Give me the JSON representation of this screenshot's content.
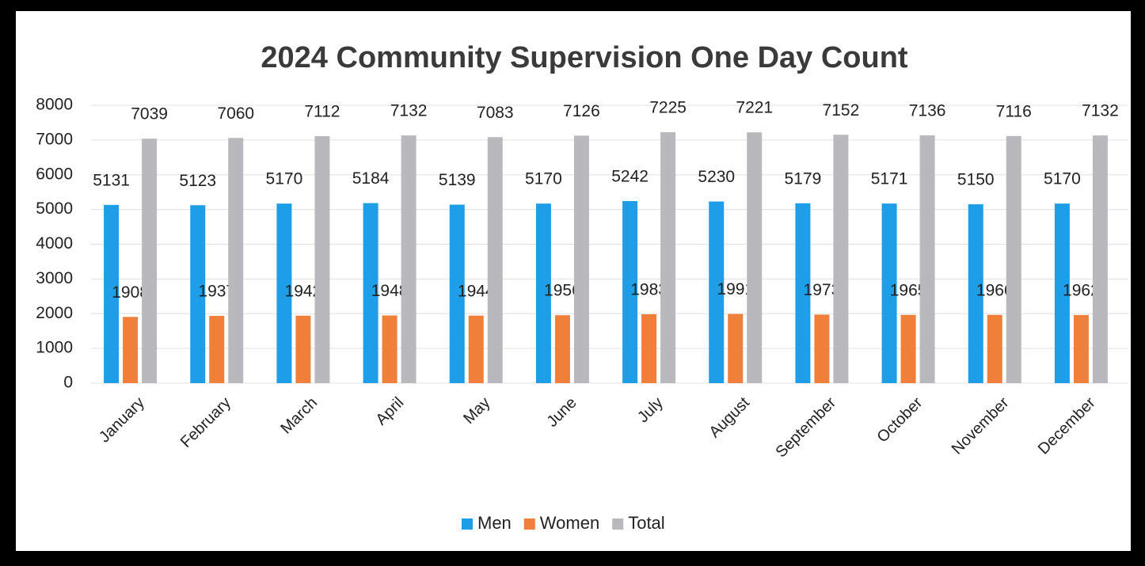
{
  "chart_data": {
    "type": "bar",
    "title": "2024 Community Supervision One Day Count",
    "categories": [
      "January",
      "February",
      "March",
      "April",
      "May",
      "June",
      "July",
      "August",
      "September",
      "October",
      "November",
      "December"
    ],
    "series": [
      {
        "name": "Men",
        "color": "#1f9ee8",
        "values": [
          5131,
          5123,
          5170,
          5184,
          5139,
          5170,
          5242,
          5230,
          5179,
          5171,
          5150,
          5170
        ]
      },
      {
        "name": "Women",
        "color": "#f07f3a",
        "values": [
          1908,
          1937,
          1942,
          1948,
          1944,
          1956,
          1983,
          1991,
          1973,
          1965,
          1966,
          1962
        ]
      },
      {
        "name": "Total",
        "color": "#b9b9bd",
        "values": [
          7039,
          7060,
          7112,
          7132,
          7083,
          7126,
          7225,
          7221,
          7152,
          7136,
          7116,
          7132
        ]
      }
    ],
    "ylim": [
      0,
      8000
    ],
    "yticks": [
      0,
      1000,
      2000,
      3000,
      4000,
      5000,
      6000,
      7000,
      8000
    ],
    "grid": true,
    "legend": "bottom"
  }
}
